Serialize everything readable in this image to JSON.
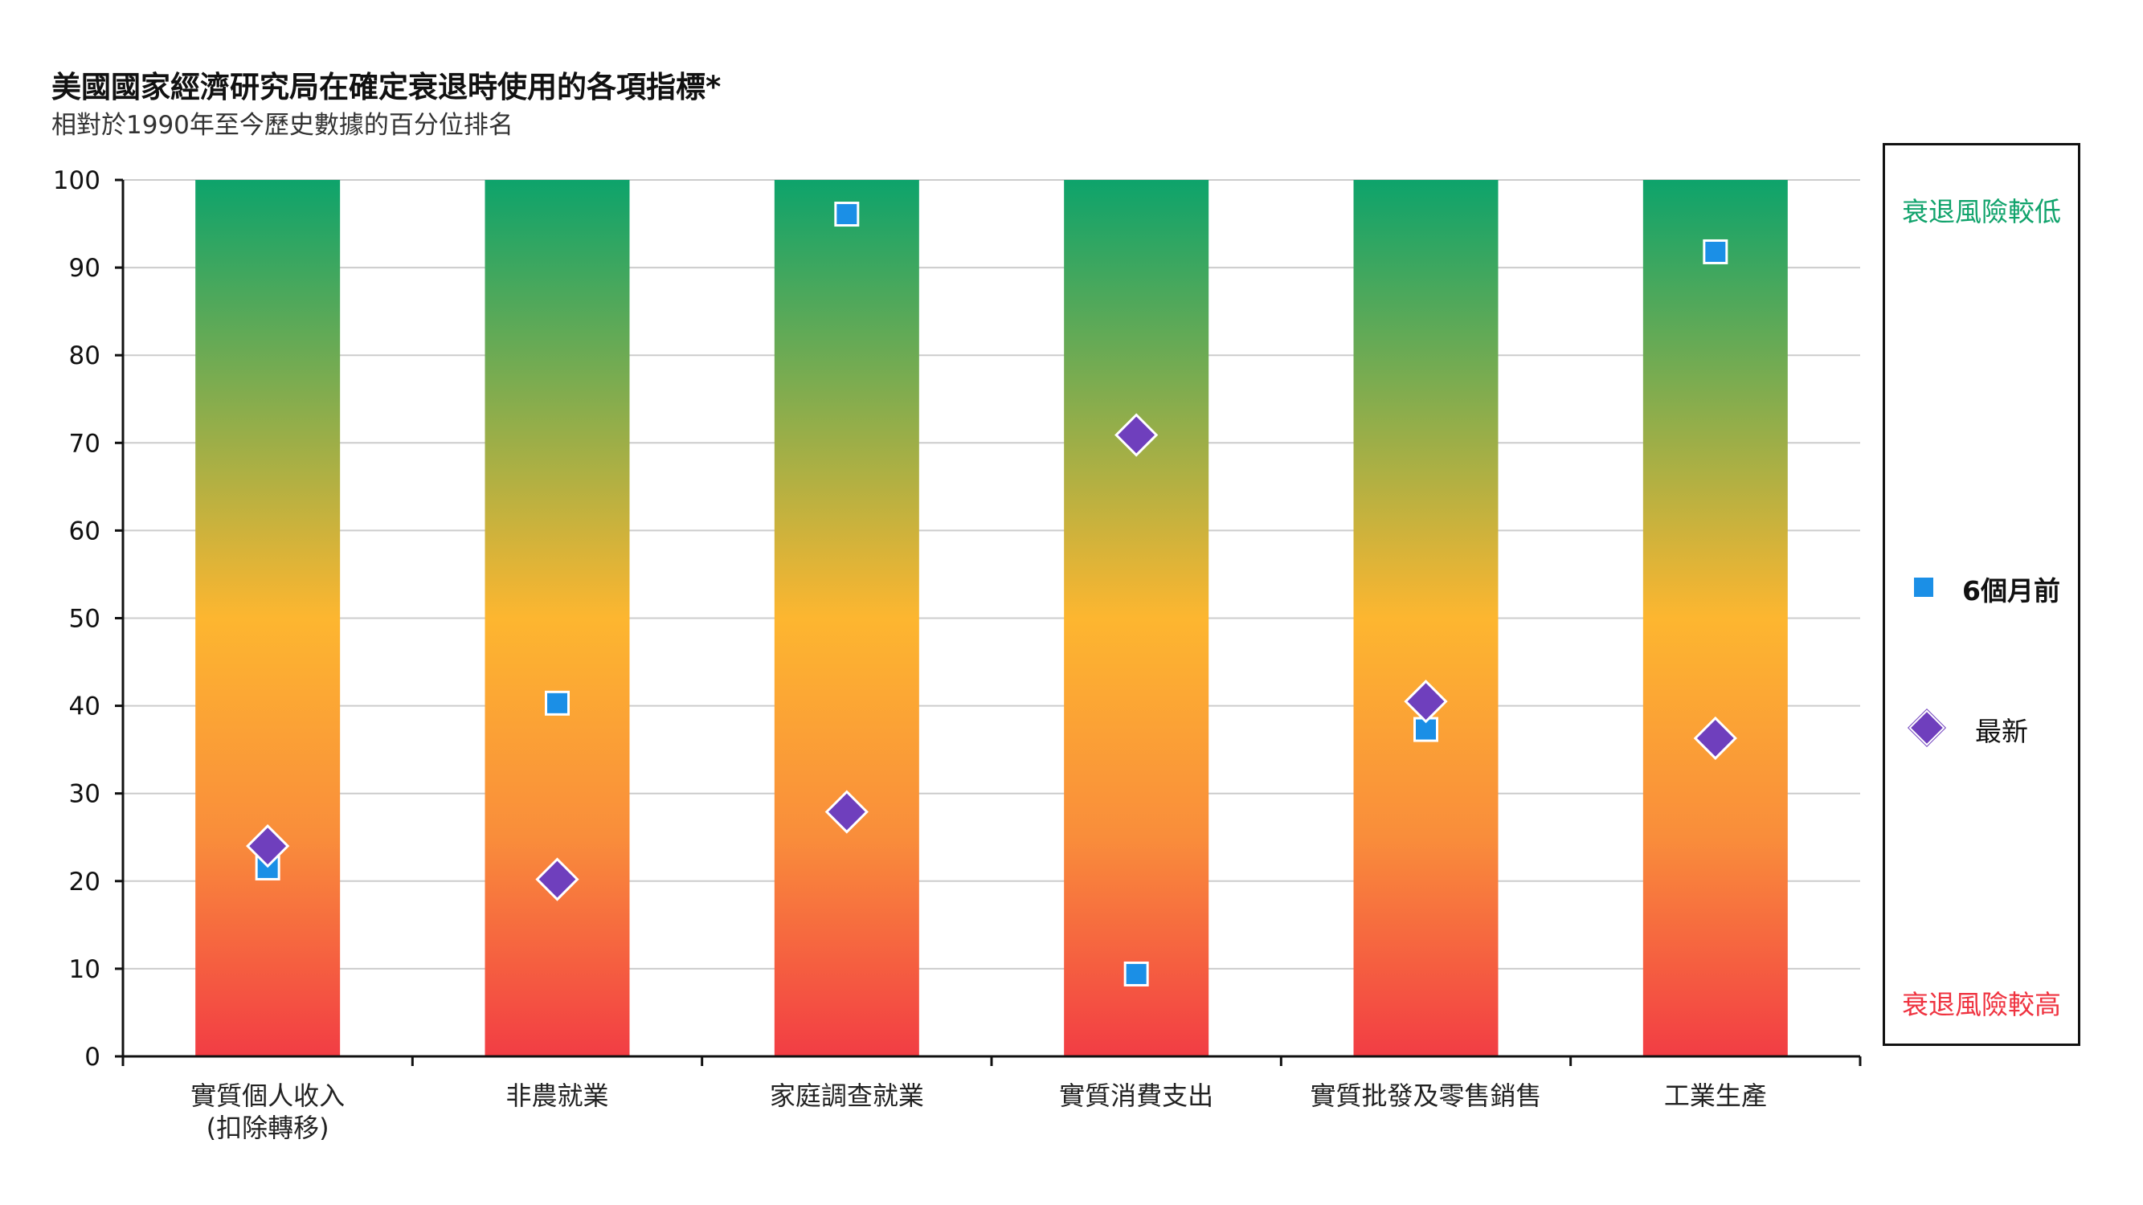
{
  "title": "美國國家經濟研究局在確定衰退時使用的各項指標*",
  "subtitle": "相對於1990年至今歷史數據的百分位排名",
  "legend": {
    "low_risk": "衰退風險較低",
    "high_risk": "衰退風險較高",
    "six_months": "6個月前",
    "latest": "最新"
  },
  "colors": {
    "top_green": "#0da36b",
    "mid_yellow": "#fdb630",
    "mid_orange": "#f98d3b",
    "bottom_red": "#f23d44",
    "square": "#1b8fe6",
    "diamond": "#6f3fbd",
    "grid": "#cccccc"
  },
  "chart_data": {
    "type": "scatter",
    "title": "美國國家經濟研究局在確定衰退時使用的各項指標*",
    "subtitle": "相對於1990年至今歷史數據的百分位排名",
    "categories": [
      [
        "實質個人收入",
        "(扣除轉移)"
      ],
      [
        "非農就業"
      ],
      [
        "家庭調查就業"
      ],
      [
        "實質消費支出"
      ],
      [
        "實質批發及零售銷售"
      ],
      [
        "工業生產"
      ]
    ],
    "ylim": [
      0,
      100
    ],
    "yticks": [
      0,
      10,
      20,
      30,
      40,
      50,
      60,
      70,
      80,
      90,
      100
    ],
    "grid": true,
    "series": [
      {
        "name": "6個月前",
        "marker": "square",
        "values": [
          21.5,
          40.3,
          96.1,
          9.4,
          37.3,
          91.8
        ]
      },
      {
        "name": "最新",
        "marker": "diamond",
        "values": [
          24.0,
          20.2,
          27.9,
          70.9,
          40.5,
          36.3
        ]
      }
    ],
    "legend": "right"
  }
}
